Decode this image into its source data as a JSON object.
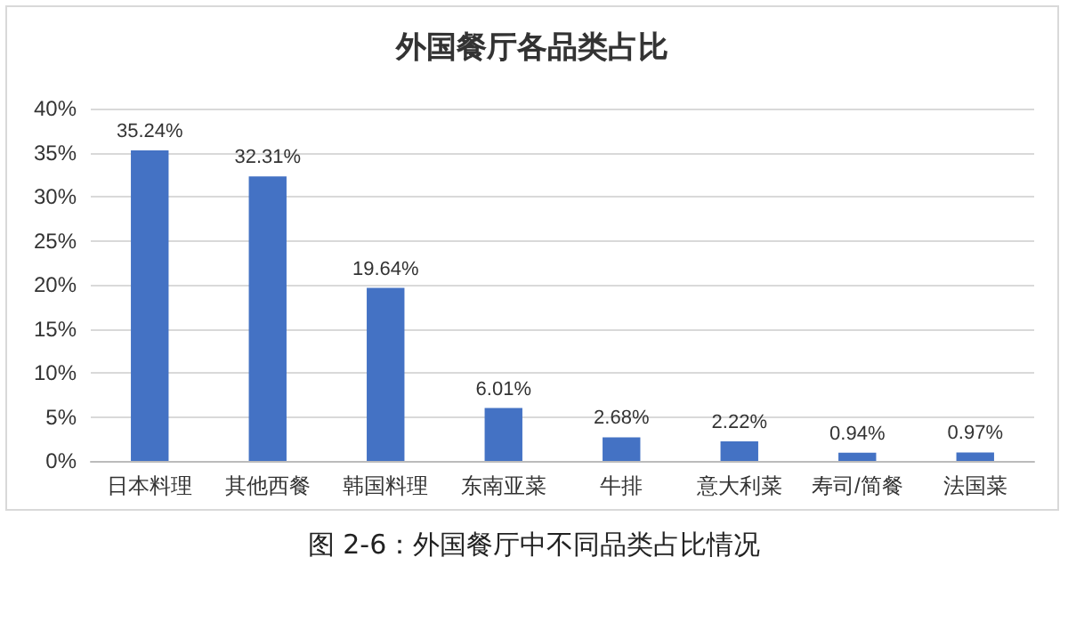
{
  "chart_data": {
    "type": "bar",
    "title": "外国餐厅各品类占比",
    "categories": [
      "日本料理",
      "其他西餐",
      "韩国料理",
      "东南亚菜",
      "牛排",
      "意大利菜",
      "寿司/简餐",
      "法国菜"
    ],
    "values": [
      35.24,
      32.31,
      19.64,
      6.01,
      2.68,
      2.22,
      0.94,
      0.97
    ],
    "value_labels": [
      "35.24%",
      "32.31%",
      "19.64%",
      "6.01%",
      "2.68%",
      "2.22%",
      "0.94%",
      "0.97%"
    ],
    "color": "#4472c4",
    "ylim": [
      0,
      40
    ],
    "yticks": [
      {
        "value": 0,
        "label": "0%"
      },
      {
        "value": 5,
        "label": "5%"
      },
      {
        "value": 10,
        "label": "10%"
      },
      {
        "value": 15,
        "label": "15%"
      },
      {
        "value": 20,
        "label": "20%"
      },
      {
        "value": 25,
        "label": "25%"
      },
      {
        "value": 30,
        "label": "30%"
      },
      {
        "value": 35,
        "label": "35%"
      },
      {
        "value": 40,
        "label": "40%"
      }
    ],
    "grid": "y",
    "annotations": [
      "图 2-6：外国餐厅中不同品类占比情况"
    ]
  }
}
